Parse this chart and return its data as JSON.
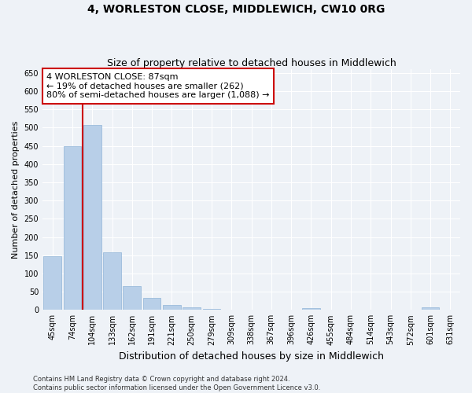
{
  "title": "4, WORLESTON CLOSE, MIDDLEWICH, CW10 0RG",
  "subtitle": "Size of property relative to detached houses in Middlewich",
  "xlabel": "Distribution of detached houses by size in Middlewich",
  "ylabel": "Number of detached properties",
  "categories": [
    "45sqm",
    "74sqm",
    "104sqm",
    "133sqm",
    "162sqm",
    "191sqm",
    "221sqm",
    "250sqm",
    "279sqm",
    "309sqm",
    "338sqm",
    "367sqm",
    "396sqm",
    "426sqm",
    "455sqm",
    "484sqm",
    "514sqm",
    "543sqm",
    "572sqm",
    "601sqm",
    "631sqm"
  ],
  "values": [
    148,
    450,
    507,
    158,
    66,
    34,
    14,
    7,
    3,
    0,
    0,
    0,
    0,
    5,
    0,
    0,
    0,
    0,
    0,
    7,
    0
  ],
  "bar_color": "#b8cfe8",
  "bar_edge_color": "#90b4d8",
  "vline_x": 1.5,
  "vline_color": "#cc0000",
  "annotation_text": "4 WORLESTON CLOSE: 87sqm\n← 19% of detached houses are smaller (262)\n80% of semi-detached houses are larger (1,088) →",
  "annotation_box_facecolor": "#ffffff",
  "annotation_box_edgecolor": "#cc0000",
  "ylim": [
    0,
    660
  ],
  "yticks": [
    0,
    50,
    100,
    150,
    200,
    250,
    300,
    350,
    400,
    450,
    500,
    550,
    600,
    650
  ],
  "footer_text": "Contains HM Land Registry data © Crown copyright and database right 2024.\nContains public sector information licensed under the Open Government Licence v3.0.",
  "background_color": "#eef2f7",
  "grid_color": "#ffffff",
  "title_fontsize": 10,
  "subtitle_fontsize": 9,
  "tick_fontsize": 7,
  "ylabel_fontsize": 8,
  "xlabel_fontsize": 9,
  "footer_fontsize": 6,
  "annotation_fontsize": 8
}
